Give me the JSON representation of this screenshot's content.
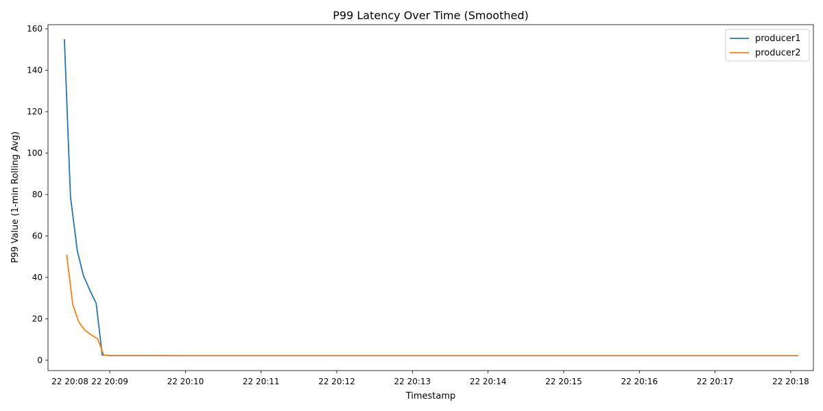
{
  "chart_data": {
    "type": "line",
    "title": "P99 Latency Over Time (Smoothed)",
    "xlabel": "Timestamp",
    "ylabel": "P99 Value (1-min Rolling Avg)",
    "x_unit": "minutes",
    "xlim": [
      8.1833,
      18.3
    ],
    "ylim": [
      -5,
      162
    ],
    "y_ticks": [
      0,
      20,
      40,
      60,
      80,
      100,
      120,
      140,
      160
    ],
    "x_ticks": [
      {
        "value": 9,
        "label": "22 20:09"
      },
      {
        "value": 10,
        "label": "22 20:10"
      },
      {
        "value": 11,
        "label": "22 20:11"
      },
      {
        "value": 12,
        "label": "22 20:12"
      },
      {
        "value": 13,
        "label": "22 20:13"
      },
      {
        "value": 14,
        "label": "22 20:14"
      },
      {
        "value": 15,
        "label": "22 20:15"
      },
      {
        "value": 16,
        "label": "22 20:16"
      },
      {
        "value": 17,
        "label": "22 20:17"
      },
      {
        "value": 18,
        "label": "22 20:18"
      }
    ],
    "x_tick_first": {
      "value": 8,
      "label": "22 20:08"
    },
    "grid": false,
    "legend": "top-right",
    "series": [
      {
        "name": "producer1",
        "color": "#1f77b4",
        "x": [
          8.4,
          8.48,
          8.57,
          8.65,
          8.74,
          8.82,
          8.9,
          9.0,
          10.0,
          11.0,
          12.0,
          13.0,
          14.0,
          15.0,
          16.0,
          17.0,
          18.1
        ],
        "y": [
          155,
          79,
          53,
          41,
          33.5,
          27.5,
          2.5,
          2.3,
          2.2,
          2.2,
          2.2,
          2.2,
          2.2,
          2.2,
          2.2,
          2.2,
          2.2
        ]
      },
      {
        "name": "producer2",
        "color": "#ff7f0e",
        "x": [
          8.43,
          8.51,
          8.59,
          8.67,
          8.76,
          8.84,
          8.92,
          9.0,
          10.0,
          11.0,
          12.0,
          13.0,
          14.0,
          15.0,
          16.0,
          17.0,
          18.1
        ],
        "y": [
          51,
          27,
          18.5,
          14.5,
          12.1,
          10.3,
          2.5,
          2.2,
          2.2,
          2.2,
          2.2,
          2.2,
          2.2,
          2.2,
          2.2,
          2.2,
          2.2
        ]
      }
    ]
  }
}
